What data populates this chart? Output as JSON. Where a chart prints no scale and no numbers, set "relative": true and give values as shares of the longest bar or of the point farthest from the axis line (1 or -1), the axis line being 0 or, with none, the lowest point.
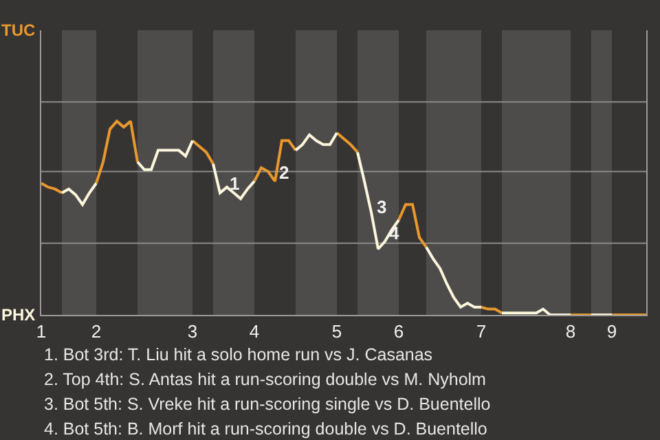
{
  "chart_data": {
    "type": "line",
    "relative": true,
    "categories": [
      "1",
      null,
      null,
      null,
      null,
      null,
      null,
      null,
      "2",
      null,
      null,
      null,
      null,
      null,
      null,
      null,
      null,
      null,
      null,
      null,
      null,
      null,
      "3",
      null,
      null,
      null,
      null,
      null,
      null,
      null,
      null,
      "4",
      null,
      null,
      null,
      null,
      null,
      null,
      null,
      null,
      null,
      null,
      null,
      "5",
      null,
      null,
      null,
      null,
      null,
      null,
      null,
      null,
      "6",
      null,
      null,
      null,
      null,
      null,
      null,
      null,
      null,
      null,
      null,
      null,
      "7",
      null,
      null,
      null,
      null,
      null,
      null,
      null,
      null,
      null,
      null,
      null,
      null,
      "8",
      null,
      null,
      null,
      null,
      null,
      "9",
      null,
      null,
      null,
      null,
      null
    ],
    "series": [
      {
        "color": "#e8982e",
        "values": [
          0.68,
          0.66,
          0.65,
          0.63,
          null,
          null,
          null,
          null,
          0.68,
          0.79,
          0.96,
          1,
          0.97,
          1,
          0.79,
          null,
          null,
          null,
          null,
          null,
          null,
          null,
          0.9,
          0.87,
          0.84,
          0.78,
          null,
          null,
          null,
          null,
          null,
          0.69,
          0.76,
          0.74,
          0.69,
          0.9,
          0.9,
          0.85,
          null,
          null,
          null,
          null,
          null,
          0.94,
          0.91,
          0.88,
          0.84,
          null,
          null,
          null,
          null,
          null,
          0.49,
          0.57,
          0.57,
          0.4,
          0.35,
          null,
          null,
          null,
          null,
          null,
          null,
          null,
          0.04,
          0.03,
          0.03,
          0.01,
          null,
          null,
          null,
          null,
          null,
          null,
          null,
          null,
          null,
          0,
          0,
          0,
          0,
          null,
          null,
          0,
          0,
          0,
          0,
          0,
          0
        ]
      },
      {
        "color": "#fbf6dc",
        "values": [
          null,
          null,
          null,
          0.63,
          0.65,
          0.62,
          0.57,
          0.63,
          0.68,
          null,
          null,
          null,
          null,
          null,
          0.79,
          0.75,
          0.75,
          0.85,
          0.85,
          0.85,
          0.85,
          0.82,
          0.9,
          null,
          null,
          0.78,
          0.63,
          0.66,
          0.63,
          0.6,
          0.65,
          0.69,
          null,
          null,
          null,
          null,
          null,
          0.85,
          0.88,
          0.93,
          0.9,
          0.88,
          0.88,
          0.94,
          null,
          null,
          0.84,
          0.69,
          0.53,
          0.34,
          0.38,
          0.44,
          0.49,
          null,
          null,
          null,
          0.35,
          0.29,
          0.24,
          0.16,
          0.09,
          0.04,
          0.06,
          0.04,
          0.04,
          null,
          null,
          0.01,
          0.01,
          0.01,
          0.01,
          0.01,
          0.01,
          0.03,
          0,
          0,
          0,
          0,
          null,
          null,
          0,
          0,
          0,
          0,
          null,
          null,
          null,
          null,
          null
        ]
      }
    ],
    "ref_lines": [
      {
        "axis": "y",
        "value": 0.37,
        "color": "#8a8a8a"
      },
      {
        "axis": "y",
        "value": 0.74,
        "color": "#8a8a8a"
      },
      {
        "axis": "y",
        "value": 1.1,
        "color": "#8a8a8a"
      }
    ],
    "annotations": [
      "TUC",
      "PHX",
      "1",
      "2",
      "3",
      "4",
      "1. Bot 3rd: T. Liu hit a solo home run vs J. Casanas",
      "2. Top 4th: S. Antas hit a run-scoring double vs M. Nyholm",
      "3. Bot 5th: S. Vreke hit a run-scoring single vs D. Buentello",
      "4. Bot 5th: B. Morf hit a run-scoring double vs D. Buentello"
    ]
  }
}
